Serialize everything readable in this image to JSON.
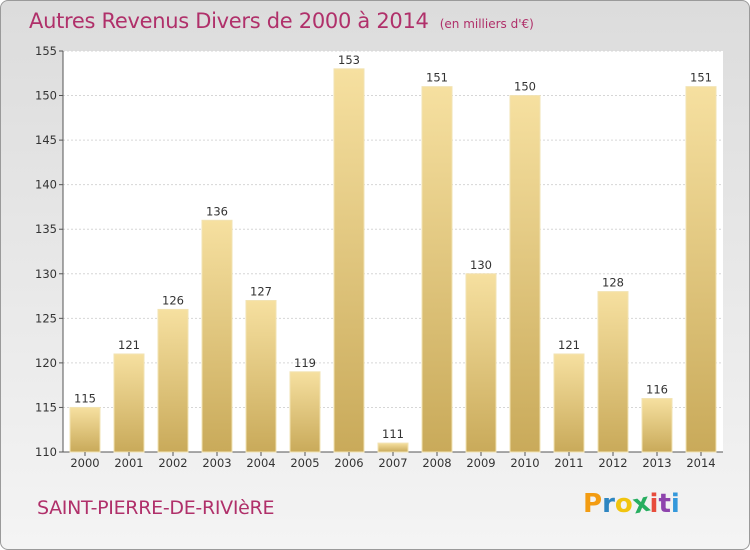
{
  "header": {
    "title": "Autres Revenus Divers de 2000 à 2014",
    "subtitle": "(en milliers d'€)"
  },
  "footer": {
    "place": "SAINT-PIERRE-DE-RIVIèRE",
    "logo_text": "Proxiti"
  },
  "colors": {
    "title": "#b0306a",
    "bar_light": "#f6e0a0",
    "bar_dark": "#c9aa5a",
    "logo": [
      "#f39c12",
      "#2e86c1",
      "#f1c40f",
      "#27ae60",
      "#e74c3c",
      "#8e44ad",
      "#3498db"
    ]
  },
  "chart_data": {
    "type": "bar",
    "title": "Autres Revenus Divers de 2000 à 2014",
    "subtitle": "(en milliers d'€)",
    "xlabel": "",
    "ylabel": "",
    "categories": [
      "2000",
      "2001",
      "2002",
      "2003",
      "2004",
      "2005",
      "2006",
      "2007",
      "2008",
      "2009",
      "2010",
      "2011",
      "2012",
      "2013",
      "2014"
    ],
    "values": [
      115,
      121,
      126,
      136,
      127,
      119,
      153,
      111,
      151,
      130,
      150,
      121,
      128,
      116,
      151
    ],
    "ylim": [
      110,
      155
    ],
    "yticks": [
      110,
      115,
      120,
      125,
      130,
      135,
      140,
      145,
      150,
      155
    ],
    "grid": true,
    "legend": "none"
  }
}
